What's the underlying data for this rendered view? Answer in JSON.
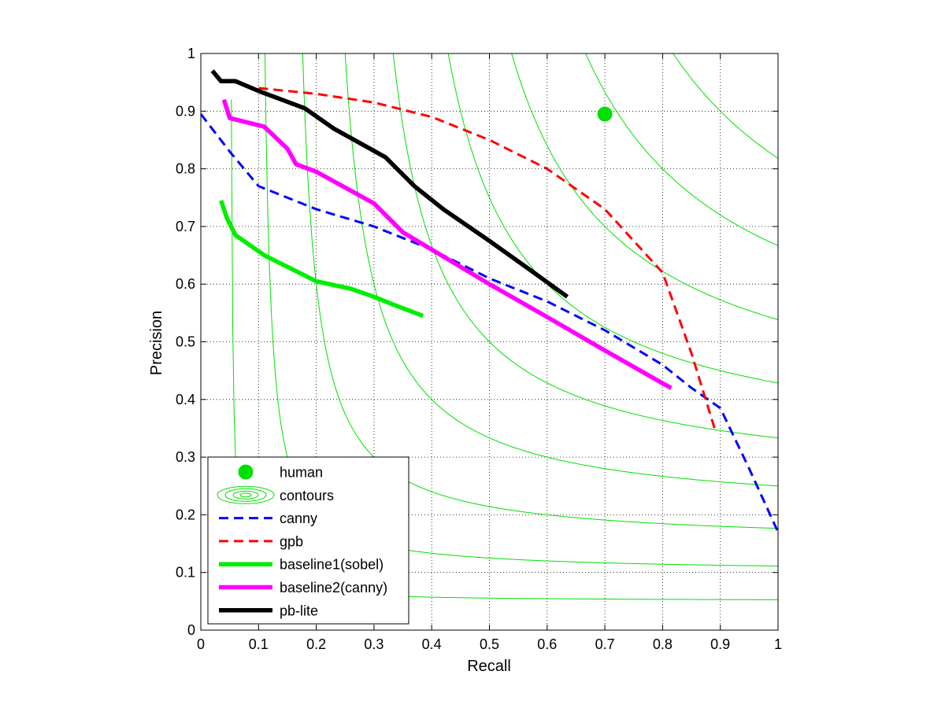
{
  "chart_data": {
    "type": "line",
    "title": "",
    "xlabel": "Recall",
    "ylabel": "Precision",
    "xlim": [
      0,
      1
    ],
    "ylim": [
      0,
      1
    ],
    "grid": true,
    "legend_position": "bottom-left",
    "x_ticks": [
      "0",
      "0.1",
      "0.2",
      "0.3",
      "0.4",
      "0.5",
      "0.6",
      "0.7",
      "0.8",
      "0.9",
      "1"
    ],
    "y_ticks": [
      "0",
      "0.1",
      "0.2",
      "0.3",
      "0.4",
      "0.5",
      "0.6",
      "0.7",
      "0.8",
      "0.9",
      "1"
    ],
    "contours": {
      "name": "contours",
      "color": "#00e000",
      "f_levels": [
        0.1,
        0.2,
        0.3,
        0.4,
        0.5,
        0.6,
        0.7,
        0.8,
        0.9
      ]
    },
    "human": {
      "name": "human",
      "x": 0.7,
      "y": 0.895,
      "color": "#00e000"
    },
    "series": [
      {
        "name": "canny",
        "color": "#0000ff",
        "style": "dashed",
        "points": [
          [
            0.0,
            0.895
          ],
          [
            0.05,
            0.83
          ],
          [
            0.1,
            0.77
          ],
          [
            0.15,
            0.75
          ],
          [
            0.2,
            0.73
          ],
          [
            0.3,
            0.7
          ],
          [
            0.4,
            0.66
          ],
          [
            0.5,
            0.61
          ],
          [
            0.6,
            0.57
          ],
          [
            0.7,
            0.52
          ],
          [
            0.8,
            0.46
          ],
          [
            0.85,
            0.42
          ],
          [
            0.9,
            0.385
          ],
          [
            0.95,
            0.28
          ],
          [
            1.0,
            0.17
          ]
        ]
      },
      {
        "name": "gpb",
        "color": "#ff0000",
        "style": "dashed",
        "points": [
          [
            0.1,
            0.94
          ],
          [
            0.2,
            0.93
          ],
          [
            0.3,
            0.915
          ],
          [
            0.4,
            0.89
          ],
          [
            0.5,
            0.85
          ],
          [
            0.6,
            0.8
          ],
          [
            0.7,
            0.73
          ],
          [
            0.8,
            0.62
          ],
          [
            0.85,
            0.48
          ],
          [
            0.89,
            0.35
          ]
        ]
      },
      {
        "name": "baseline1(sobel)",
        "color": "#00ee00",
        "style": "solid",
        "points": [
          [
            0.035,
            0.745
          ],
          [
            0.045,
            0.715
          ],
          [
            0.06,
            0.685
          ],
          [
            0.11,
            0.65
          ],
          [
            0.15,
            0.63
          ],
          [
            0.2,
            0.605
          ],
          [
            0.26,
            0.592
          ],
          [
            0.3,
            0.578
          ],
          [
            0.34,
            0.562
          ],
          [
            0.385,
            0.545
          ]
        ]
      },
      {
        "name": "baseline2(canny)",
        "color": "#ff00ff",
        "style": "solid",
        "points": [
          [
            0.04,
            0.92
          ],
          [
            0.05,
            0.888
          ],
          [
            0.11,
            0.873
          ],
          [
            0.15,
            0.835
          ],
          [
            0.165,
            0.808
          ],
          [
            0.2,
            0.795
          ],
          [
            0.3,
            0.74
          ],
          [
            0.35,
            0.69
          ],
          [
            0.4,
            0.66
          ],
          [
            0.5,
            0.6
          ],
          [
            0.6,
            0.543
          ],
          [
            0.7,
            0.485
          ],
          [
            0.8,
            0.428
          ],
          [
            0.815,
            0.42
          ]
        ]
      },
      {
        "name": "pb-lite",
        "color": "#000000",
        "style": "solid",
        "points": [
          [
            0.02,
            0.97
          ],
          [
            0.035,
            0.952
          ],
          [
            0.06,
            0.952
          ],
          [
            0.1,
            0.935
          ],
          [
            0.18,
            0.905
          ],
          [
            0.23,
            0.87
          ],
          [
            0.32,
            0.82
          ],
          [
            0.37,
            0.77
          ],
          [
            0.42,
            0.73
          ],
          [
            0.5,
            0.675
          ],
          [
            0.57,
            0.625
          ],
          [
            0.635,
            0.578
          ]
        ]
      }
    ]
  }
}
